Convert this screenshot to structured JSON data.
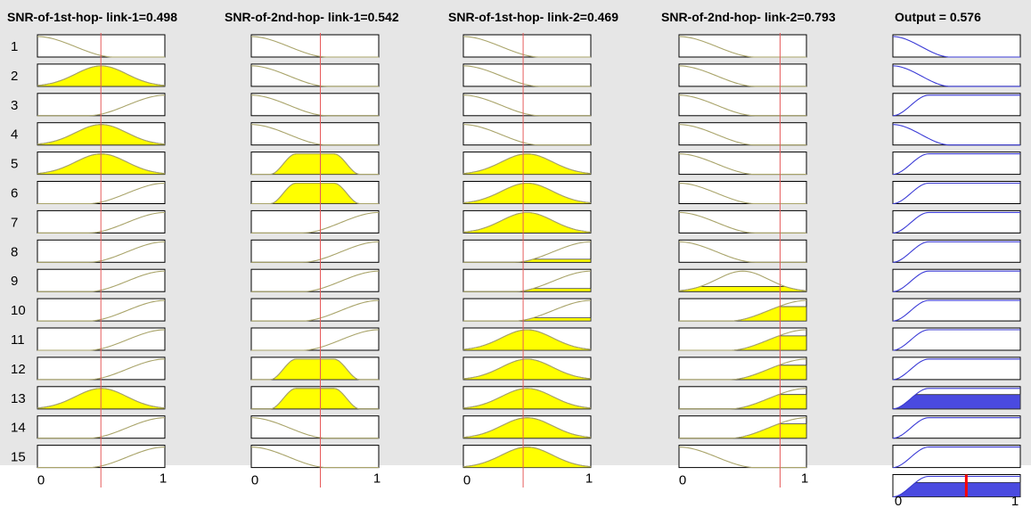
{
  "columns": [
    {
      "title": "SNR-of-1st-hop- link-1=0.498",
      "value": 0.498,
      "kind": "input"
    },
    {
      "title": "SNR-of-2nd-hop- link-1=0.542",
      "value": 0.542,
      "kind": "input"
    },
    {
      "title": "SNR-of-1st-hop- link-2=0.469",
      "value": 0.469,
      "kind": "input"
    },
    {
      "title": "SNR-of-2nd-hop- link-2=0.793",
      "value": 0.793,
      "kind": "input"
    },
    {
      "title": "Output = 0.576",
      "value": 0.576,
      "kind": "output"
    }
  ],
  "rules": [
    {
      "label": "1",
      "mf": [
        "L",
        "L",
        "L",
        "L",
        "L"
      ],
      "fire": [
        0,
        0,
        0,
        0,
        0
      ]
    },
    {
      "label": "2",
      "mf": [
        "M",
        "L",
        "L",
        "L",
        "L"
      ],
      "fire": [
        1,
        0,
        0,
        0,
        0
      ]
    },
    {
      "label": "3",
      "mf": [
        "H",
        "L",
        "L",
        "L",
        "LH"
      ],
      "fire": [
        0,
        0,
        0,
        0,
        0
      ]
    },
    {
      "label": "4",
      "mf": [
        "M",
        "L",
        "L",
        "L",
        "L"
      ],
      "fire": [
        1,
        0,
        0,
        0,
        0
      ]
    },
    {
      "label": "5",
      "mf": [
        "M",
        "M",
        "M",
        "L",
        "H"
      ],
      "fire": [
        1,
        1,
        1,
        0,
        0
      ]
    },
    {
      "label": "6",
      "mf": [
        "H",
        "M",
        "M",
        "L",
        "H"
      ],
      "fire": [
        0,
        1,
        1,
        0,
        0
      ]
    },
    {
      "label": "7",
      "mf": [
        "H",
        "H",
        "M",
        "L",
        "H"
      ],
      "fire": [
        0,
        0,
        1,
        0,
        0
      ]
    },
    {
      "label": "8",
      "mf": [
        "H",
        "H",
        "H",
        "L",
        "H"
      ],
      "fire": [
        0,
        0,
        0.15,
        0,
        0
      ]
    },
    {
      "label": "9",
      "mf": [
        "H",
        "H",
        "H",
        "M",
        "H"
      ],
      "fire": [
        0,
        0,
        0.15,
        0.25,
        0
      ]
    },
    {
      "label": "10",
      "mf": [
        "H",
        "H",
        "H",
        "H",
        "H"
      ],
      "fire": [
        0,
        0,
        0.15,
        0.7,
        0
      ]
    },
    {
      "label": "11",
      "mf": [
        "H",
        "H",
        "M",
        "H",
        "H"
      ],
      "fire": [
        0,
        0,
        1,
        0.7,
        0
      ]
    },
    {
      "label": "12",
      "mf": [
        "H",
        "M",
        "M",
        "H",
        "H"
      ],
      "fire": [
        0,
        1,
        1,
        0.7,
        0
      ]
    },
    {
      "label": "13",
      "mf": [
        "M",
        "M",
        "M",
        "H",
        "H"
      ],
      "fire": [
        1,
        1,
        1,
        0.7,
        0.7
      ]
    },
    {
      "label": "14",
      "mf": [
        "H",
        "L",
        "M",
        "H",
        "H"
      ],
      "fire": [
        0,
        0,
        1,
        0.7,
        0
      ]
    },
    {
      "label": "15",
      "mf": [
        "H",
        "L",
        "M",
        "L",
        "H"
      ],
      "fire": [
        0,
        0,
        1,
        0,
        0
      ]
    }
  ],
  "axis": {
    "min_label": "0",
    "max_label": "1"
  },
  "aggregate": {
    "value": 0.576,
    "level": 0.7
  },
  "colors": {
    "background": "#e6e6e6",
    "input_curve": "#a9a46a",
    "fill_input": "#ffff00",
    "output_curve": "#3b3bd6",
    "fill_output": "#4a4ae0",
    "marker": "#e65a5a",
    "output_marker": "#ff0000"
  }
}
